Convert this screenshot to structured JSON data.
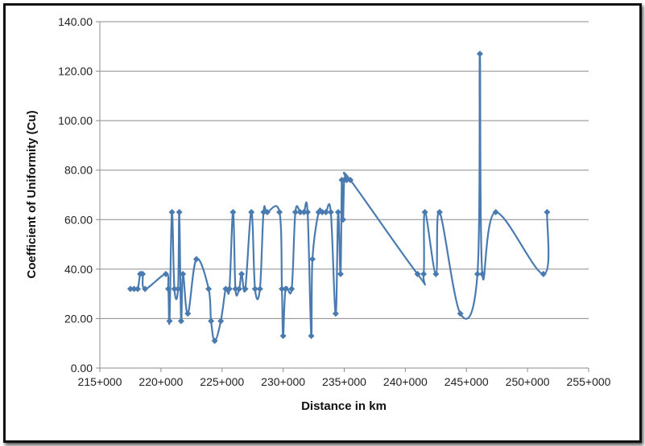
{
  "chart_data": {
    "type": "line",
    "title": "",
    "xlabel": "Distance in km",
    "ylabel": "Coefficient  of Uniformity (Cu)",
    "xlim": [
      215000,
      255000
    ],
    "ylim": [
      0,
      140
    ],
    "x_ticks": [
      215000,
      220000,
      225000,
      230000,
      235000,
      240000,
      245000,
      250000,
      255000
    ],
    "x_tick_labels": [
      "215+000",
      "220+000",
      "225+000",
      "230+000",
      "235+000",
      "240+000",
      "245+000",
      "250+000",
      "255+000"
    ],
    "y_ticks": [
      0,
      20,
      40,
      60,
      80,
      100,
      120,
      140
    ],
    "y_tick_labels": [
      "0.00",
      "20.00",
      "40.00",
      "60.00",
      "80.00",
      "100.00",
      "120.00",
      "140.00"
    ],
    "grid": true,
    "line_color": "#4a7bb0",
    "series": [
      {
        "x": [
          217500,
          217800,
          218100,
          218300,
          218500,
          218700,
          220400,
          220600,
          220700,
          220900,
          221100,
          221400,
          221500,
          221650,
          221800,
          222200,
          222900,
          223900,
          224100,
          224400,
          224900,
          225300,
          225600,
          225900,
          226100,
          226400,
          226600,
          226900,
          227400,
          227700,
          228100,
          228400,
          228700,
          229700,
          229900,
          230000,
          230200,
          230700,
          231000,
          231400,
          231700,
          232000,
          232300,
          232400,
          232900,
          233200,
          233500,
          233900,
          234300,
          234500,
          234700,
          234800,
          234900,
          235000,
          235200,
          235500,
          241000,
          241500,
          241600,
          242500,
          242800,
          244500,
          245900,
          246100,
          246300,
          247400,
          251300,
          251600
        ],
        "y": [
          32,
          32,
          32,
          38,
          38,
          32,
          38,
          32,
          19,
          63,
          32,
          32,
          63,
          19,
          38,
          22,
          44,
          32,
          19,
          11,
          19,
          32,
          32,
          63,
          32,
          32,
          38,
          32,
          63,
          32,
          32,
          63,
          63,
          63,
          32,
          13,
          32,
          32,
          63,
          63,
          63,
          63,
          13,
          44,
          63,
          63,
          63,
          63,
          22,
          63,
          38,
          76,
          60,
          76,
          76,
          76,
          38,
          38,
          63,
          38,
          63,
          22,
          38,
          127,
          38,
          63,
          38,
          63
        ]
      }
    ]
  }
}
